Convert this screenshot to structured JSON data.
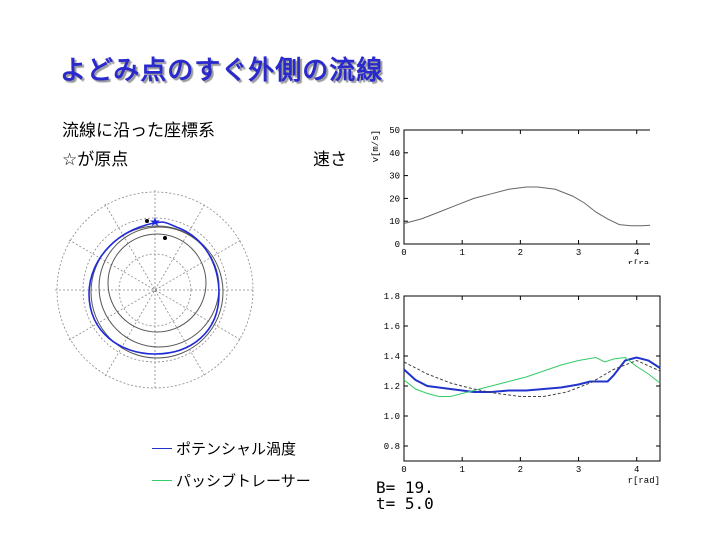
{
  "slide": {
    "title": "よどみ点のすぐ外側の流線",
    "subtitle_line1": "流線に沿った座標系",
    "subtitle_line2": "☆が原点",
    "speed_label": "速さ",
    "legend": [
      {
        "label": "ポテンシャル渦度",
        "color": "#2233cc"
      },
      {
        "label": "パッシブトレーサー",
        "color": "#33cc66"
      }
    ],
    "params": {
      "B_label": "B=",
      "B_value": "19.",
      "t_label": "t=",
      "t_value": "5.0"
    }
  },
  "chart_data": [
    {
      "type": "line",
      "xlabel": "r[rad]",
      "ylabel": "v[m/s]",
      "xlim": [
        0,
        4.4
      ],
      "ylim": [
        0,
        50
      ],
      "x_ticks": [
        "0",
        "1",
        "2",
        "3",
        "4"
      ],
      "y_ticks": [
        "0",
        "10",
        "20",
        "30",
        "40",
        "50"
      ],
      "series": [
        {
          "color": "#666666",
          "x": [
            0,
            0.3,
            0.6,
            0.9,
            1.2,
            1.5,
            1.8,
            2.1,
            2.3,
            2.6,
            2.9,
            3.1,
            3.3,
            3.5,
            3.7,
            3.9,
            4.1,
            4.4
          ],
          "y": [
            9,
            11,
            14,
            17,
            20,
            22,
            24,
            25,
            25,
            24,
            21,
            18,
            14,
            11,
            8.5,
            8,
            8,
            8.5
          ]
        }
      ]
    },
    {
      "type": "line",
      "xlabel": "r[rad]",
      "xlim": [
        0,
        4.4
      ],
      "ylim": [
        0.7,
        1.8
      ],
      "x_ticks": [
        "0",
        "1",
        "2",
        "3",
        "4"
      ],
      "y_ticks": [
        "0.8",
        "1.0",
        "1.2",
        "1.4",
        "1.6",
        "1.8"
      ],
      "series": [
        {
          "color": "#2233cc",
          "x": [
            0,
            0.2,
            0.4,
            0.6,
            0.8,
            1.0,
            1.2,
            1.5,
            1.8,
            2.1,
            2.4,
            2.7,
            3.0,
            3.2,
            3.4,
            3.5,
            3.6,
            3.8,
            4.0,
            4.2,
            4.4
          ],
          "y": [
            1.31,
            1.24,
            1.2,
            1.19,
            1.18,
            1.17,
            1.16,
            1.16,
            1.17,
            1.17,
            1.18,
            1.19,
            1.21,
            1.23,
            1.23,
            1.23,
            1.27,
            1.37,
            1.39,
            1.37,
            1.32
          ]
        },
        {
          "color": "#33cc66",
          "x": [
            0,
            0.2,
            0.4,
            0.6,
            0.8,
            1.0,
            1.2,
            1.5,
            1.8,
            2.1,
            2.4,
            2.7,
            3.0,
            3.3,
            3.45,
            3.6,
            3.8,
            4.0,
            4.2,
            4.4
          ],
          "y": [
            1.24,
            1.18,
            1.15,
            1.13,
            1.13,
            1.15,
            1.17,
            1.2,
            1.23,
            1.26,
            1.3,
            1.34,
            1.37,
            1.39,
            1.36,
            1.38,
            1.39,
            1.33,
            1.28,
            1.22
          ]
        },
        {
          "color": "#444444",
          "dash": true,
          "x": [
            0,
            0.4,
            0.8,
            1.2,
            1.6,
            2.0,
            2.4,
            2.8,
            3.2,
            3.6,
            4.0,
            4.4
          ],
          "y": [
            1.36,
            1.28,
            1.22,
            1.18,
            1.15,
            1.13,
            1.13,
            1.16,
            1.22,
            1.31,
            1.37,
            1.3
          ]
        }
      ]
    }
  ]
}
